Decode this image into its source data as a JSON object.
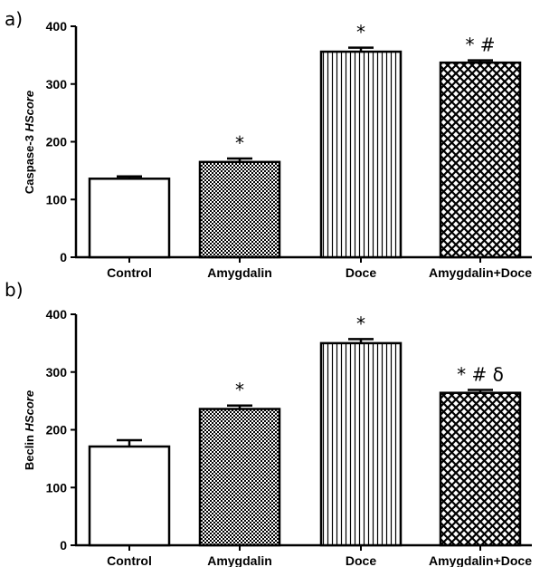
{
  "chart_data": [
    {
      "panel_label": "a)",
      "type": "bar",
      "ylabel_main": "Caspase-3 ",
      "ylabel_italic": "HScore",
      "categories": [
        "Control",
        "Amygdalin",
        "Doce",
        "Amygdalin+Doce"
      ],
      "values": [
        136,
        165,
        356,
        337
      ],
      "errors": [
        4,
        6,
        7,
        4
      ],
      "patterns": [
        "blank",
        "dots",
        "vertical-lines",
        "crosshatch"
      ],
      "annotations": [
        "",
        "*",
        "*",
        "* #"
      ],
      "ylim": [
        0,
        400
      ],
      "yticks": [
        "0",
        "100",
        "200",
        "300",
        "400"
      ]
    },
    {
      "panel_label": "b)",
      "type": "bar",
      "ylabel_main": "Beclin ",
      "ylabel_italic": "HScore",
      "categories": [
        "Control",
        "Amygdalin",
        "Doce",
        "Amygdalin+Doce"
      ],
      "values": [
        171,
        236,
        350,
        264
      ],
      "errors": [
        11,
        6,
        7,
        5
      ],
      "patterns": [
        "blank",
        "dots",
        "vertical-lines",
        "crosshatch"
      ],
      "annotations": [
        "",
        "*",
        "*",
        "* # δ"
      ],
      "ylim": [
        0,
        400
      ],
      "yticks": [
        "0",
        "100",
        "200",
        "300",
        "400"
      ]
    }
  ]
}
